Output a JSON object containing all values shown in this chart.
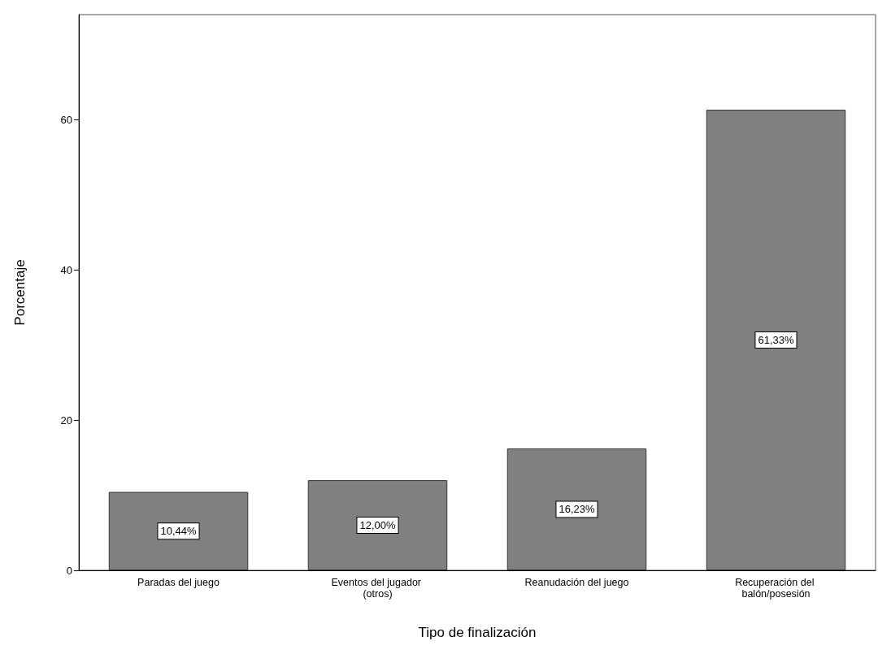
{
  "chart_data": {
    "type": "bar",
    "xlabel": "Tipo de finalización",
    "ylabel": "Porcentaje",
    "categories": [
      "Paradas del juego",
      "Eventos del jugador (otros)",
      "Reanudación del juego",
      "Recuperación del balón/posesión"
    ],
    "values": [
      10.44,
      12.0,
      16.23,
      61.33
    ],
    "value_labels": [
      "10,44%",
      "12,00%",
      "16,23%",
      "61,33%"
    ],
    "color": "#808080",
    "ylim": [
      0,
      74
    ],
    "yticks": [
      0,
      20,
      40,
      60
    ]
  }
}
